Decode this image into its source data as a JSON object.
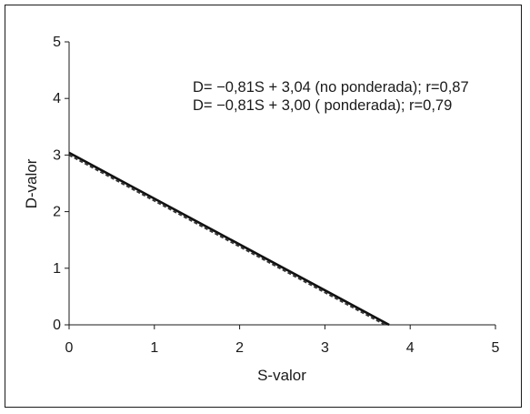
{
  "chart_data": {
    "type": "line",
    "xlabel": "S-valor",
    "ylabel": "D-valor",
    "xlim": [
      0,
      5
    ],
    "ylim": [
      0,
      5
    ],
    "x_ticks": [
      "0",
      "1",
      "2",
      "3",
      "4",
      "5"
    ],
    "y_ticks": [
      "0",
      "1",
      "2",
      "3",
      "4",
      "5"
    ],
    "grid": false,
    "legend": "none",
    "annotations": [
      "D= −0,81S + 3,04 (no ponderada); r=0,87",
      "D= −0,81S + 3,00 ( ponderada); r=0,79"
    ],
    "series": [
      {
        "style": "solid",
        "color": "#111111",
        "x": [
          0,
          3.753
        ],
        "y": [
          3.04,
          0
        ]
      },
      {
        "style": "dashed",
        "color": "#333333",
        "x": [
          0,
          3.704
        ],
        "y": [
          3.0,
          0
        ]
      }
    ]
  }
}
